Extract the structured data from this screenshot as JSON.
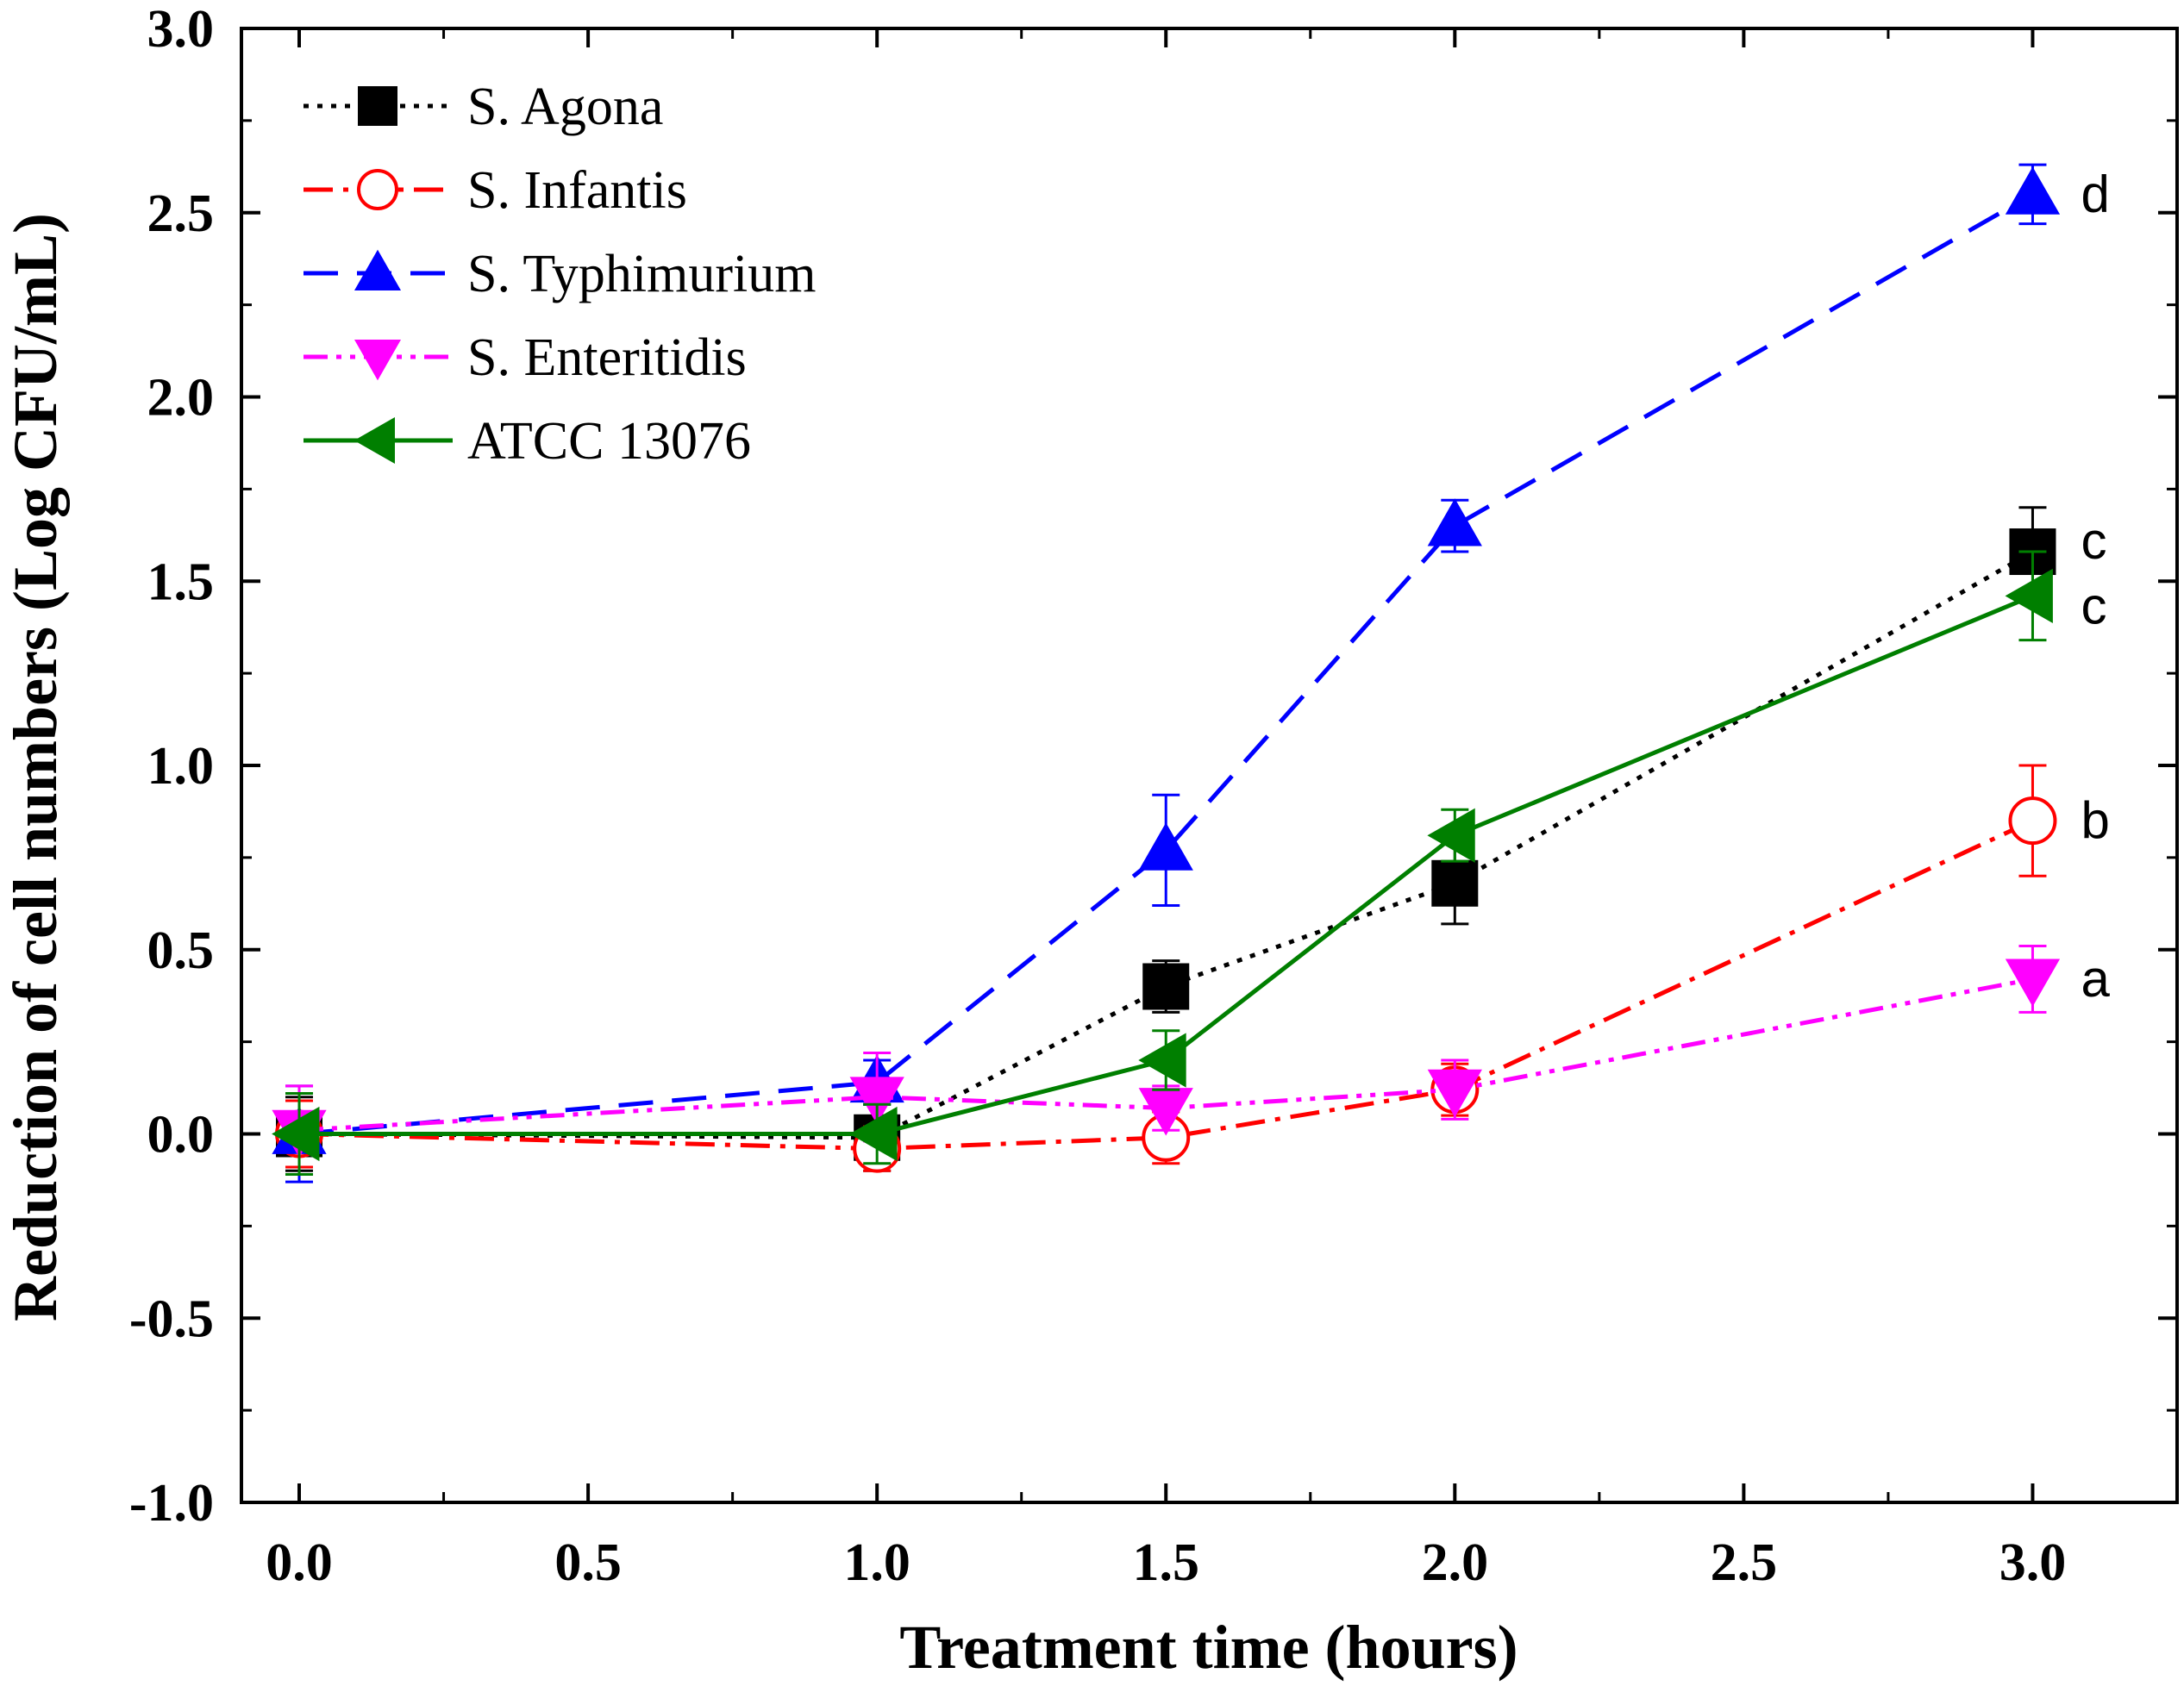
{
  "chart_data": {
    "type": "line",
    "title": "",
    "xlabel": "Treatment time (hours)",
    "ylabel": "Reduction of cell numbers (Log CFU/mL)",
    "xlim": [
      -0.1,
      3.25
    ],
    "ylim": [
      -1.0,
      3.0
    ],
    "xticks": [
      0.0,
      0.5,
      1.0,
      1.5,
      2.0,
      2.5,
      3.0
    ],
    "xtick_labels": [
      "0.0",
      "0.5",
      "1.0",
      "1.5",
      "2.0",
      "2.5",
      "3.0"
    ],
    "yticks": [
      -1.0,
      -0.5,
      0.0,
      0.5,
      1.0,
      1.5,
      2.0,
      2.5,
      3.0
    ],
    "ytick_labels": [
      "-1.0",
      "-0.5",
      "0.0",
      "0.5",
      "1.0",
      "1.5",
      "2.0",
      "2.5",
      "3.0"
    ],
    "grid": false,
    "legend_position": "top-left",
    "x": [
      0.0,
      1.0,
      1.5,
      2.0,
      3.0
    ],
    "series": [
      {
        "name": "S. Agona",
        "color": "#000000",
        "marker": "square-filled",
        "dash": "dotted",
        "values": [
          0.0,
          -0.01,
          0.4,
          0.68,
          1.58
        ],
        "errors": [
          0.1,
          0.09,
          0.07,
          0.11,
          0.12
        ]
      },
      {
        "name": "S. Infantis",
        "color": "#ff0000",
        "marker": "circle-open",
        "dash": "dash-dot",
        "values": [
          0.0,
          -0.04,
          -0.01,
          0.12,
          0.85
        ],
        "errors": [
          0.09,
          0.06,
          0.07,
          0.07,
          0.15
        ]
      },
      {
        "name": "S. Typhimurium",
        "color": "#0000ff",
        "marker": "triangle-up-filled",
        "dash": "dashed",
        "values": [
          0.0,
          0.14,
          0.77,
          1.65,
          2.55
        ],
        "errors": [
          0.13,
          0.06,
          0.15,
          0.07,
          0.08
        ]
      },
      {
        "name": "S. Enteritidis",
        "color": "#ff00ff",
        "marker": "triangle-down-filled",
        "dash": "dash-dot-dot",
        "values": [
          0.01,
          0.1,
          0.07,
          0.12,
          0.42
        ],
        "errors": [
          0.12,
          0.12,
          0.06,
          0.08,
          0.09
        ]
      },
      {
        "name": "ATCC 13076",
        "color": "#007f00",
        "marker": "triangle-left-filled",
        "dash": "solid",
        "values": [
          0.0,
          0.0,
          0.2,
          0.81,
          1.46
        ],
        "errors": [
          0.11,
          0.08,
          0.08,
          0.07,
          0.12
        ]
      }
    ],
    "annotations": [
      {
        "text": "d",
        "series": "S. Typhimurium",
        "x": 3.0
      },
      {
        "text": "c",
        "series": "S. Agona",
        "x": 3.0
      },
      {
        "text": "c",
        "series": "ATCC 13076",
        "x": 3.0
      },
      {
        "text": "b",
        "series": "S. Infantis",
        "x": 3.0
      },
      {
        "text": "a",
        "series": "S. Enteritidis",
        "x": 3.0
      }
    ]
  }
}
